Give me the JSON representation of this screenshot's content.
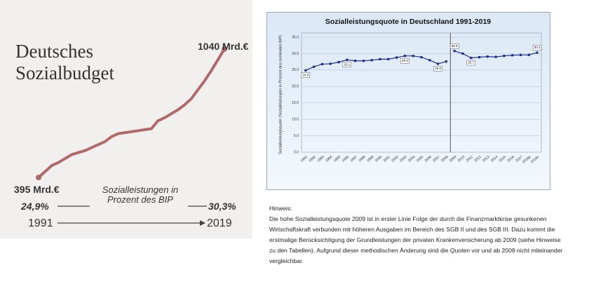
{
  "chart_data": [
    {
      "type": "line",
      "title": "Deutsches Sozialbudget",
      "x": [
        1991,
        1992,
        1993,
        1994,
        1995,
        1996,
        1997,
        1998,
        1999,
        2000,
        2001,
        2002,
        2003,
        2004,
        2005,
        2006,
        2007,
        2008,
        2009,
        2010,
        2011,
        2012,
        2013,
        2014,
        2015,
        2016,
        2017,
        2018,
        2019
      ],
      "values": [
        395,
        425,
        455,
        470,
        490,
        510,
        520,
        530,
        545,
        560,
        575,
        600,
        615,
        620,
        625,
        630,
        635,
        640,
        680,
        695,
        715,
        735,
        760,
        790,
        835,
        880,
        930,
        985,
        1040
      ],
      "color": "#b06a6a",
      "start_label": "395 Mrd.€",
      "end_label": "1040 Mrd.€",
      "caption": "Sozialleistungen in Prozent des BIP",
      "start_share": "24,9%",
      "end_share": "30,3%"
    },
    {
      "type": "line",
      "title": "Sozialleistungsquote in Deutschland 1991-2019",
      "ylabel": "Sozialleistungsquote (Sozialleistungen in Prozent des nominalen BIP)",
      "categories": [
        "1991",
        "1992",
        "1993",
        "1994",
        "1995",
        "1996",
        "1997",
        "1998",
        "1999",
        "2000",
        "2001",
        "2002",
        "2003",
        "2004",
        "2005",
        "2006",
        "2007",
        "2008",
        "2009",
        "2010",
        "2011",
        "2012",
        "2013",
        "2014",
        "2015",
        "2016",
        "2017",
        "2018p",
        "2019s"
      ],
      "series": [
        {
          "color": "#1f2f8f",
          "values": [
            24.9,
            26.0,
            26.8,
            26.9,
            27.4,
            28.1,
            27.8,
            27.8,
            28.0,
            28.3,
            28.3,
            28.8,
            29.3,
            29.3,
            28.9,
            28.0,
            26.9,
            27.6,
            null,
            null,
            null,
            null,
            null,
            null,
            null,
            null,
            null,
            null,
            null
          ],
          "value_labels": [
            "24.9",
            null,
            null,
            null,
            null,
            "28.1",
            null,
            null,
            null,
            null,
            null,
            null,
            "29.3",
            null,
            null,
            null,
            "26.9",
            null,
            null,
            null,
            null,
            null,
            null,
            null,
            null,
            null,
            null,
            null,
            null
          ]
        },
        {
          "color": "#1f2f8f",
          "values": [
            null,
            null,
            null,
            null,
            null,
            null,
            null,
            null,
            null,
            null,
            null,
            null,
            null,
            null,
            null,
            null,
            null,
            null,
            30.8,
            30.0,
            28.7,
            28.9,
            29.1,
            29.0,
            29.3,
            29.5,
            29.6,
            29.6,
            30.3
          ],
          "value_labels": [
            null,
            null,
            null,
            null,
            null,
            null,
            null,
            null,
            null,
            null,
            null,
            null,
            null,
            null,
            null,
            null,
            null,
            null,
            "30.8",
            null,
            "28.7",
            null,
            null,
            null,
            null,
            null,
            null,
            null,
            "30.3"
          ]
        }
      ],
      "ylim": [
        0,
        35
      ],
      "yticks": [
        {
          "value": 0,
          "label": "0.0"
        },
        {
          "value": 5,
          "label": "5.0"
        },
        {
          "value": 10,
          "label": "10.0"
        },
        {
          "value": 15,
          "label": "15.0"
        },
        {
          "value": 20,
          "label": "20.0"
        },
        {
          "value": 25,
          "label": "25.0"
        },
        {
          "value": 30,
          "label": "30.0"
        },
        {
          "value": 35,
          "label": "35.0"
        }
      ],
      "grid": true
    }
  ],
  "note": {
    "heading": "Hinweis:",
    "text": "Die hohe Sozialleistungsquote 2009 ist in erster Linie Folge der durch die Finanzmarktkrise gesunkenen Wirtschaftskraft verbunden mit höheren Ausgaben im Bereich des SGB II und des SGB III. Dazu kommt die erstmalige Berücksichtigung der Grundleistungen der privaten Krankenversicherung ab 2009 (siehe Hinweise zu den Tabellen). Aufgrund dieser methodischen Änderung sind die Quoten vor und ab 2009 nicht miteinander vergleichbar."
  }
}
